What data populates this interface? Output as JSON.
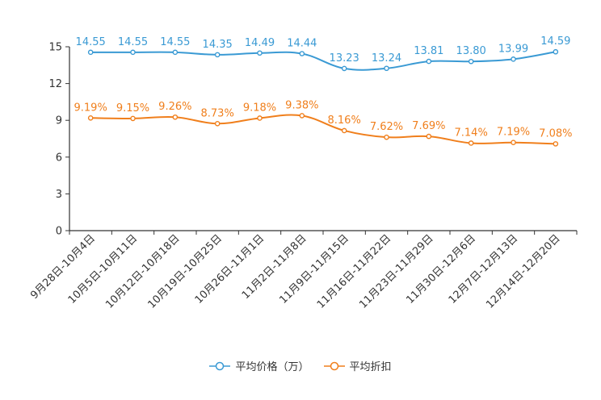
{
  "chart_data": {
    "type": "line",
    "title": "",
    "xlabel": "",
    "ylabel": "",
    "ylim": [
      0,
      15
    ],
    "yticks": [
      0,
      3,
      6,
      9,
      12,
      15
    ],
    "grid": false,
    "legend_position": "bottom",
    "categories": [
      "9月28日-10月4日",
      "10月5日-10月11日",
      "10月12日-10月18日",
      "10月19日-10月25日",
      "10月26日-11月1日",
      "11月2日-11月8日",
      "11月9日-11月15日",
      "11月16日-11月22日",
      "11月23日-11月29日",
      "11月30日-12月6日",
      "12月7日-12月13日",
      "12月14日-12月20日"
    ],
    "series": [
      {
        "name": "平均价格（万）",
        "color": "#3a9ad4",
        "values": [
          14.55,
          14.55,
          14.55,
          14.35,
          14.49,
          14.44,
          13.23,
          13.24,
          13.81,
          13.8,
          13.99,
          14.59
        ],
        "labels": [
          "14.55",
          "14.55",
          "14.55",
          "14.35",
          "14.49",
          "14.44",
          "13.23",
          "13.24",
          "13.81",
          "13.80",
          "13.99",
          "14.59"
        ]
      },
      {
        "name": "平均折扣",
        "color": "#f07f1c",
        "values": [
          9.19,
          9.15,
          9.26,
          8.73,
          9.18,
          9.38,
          8.16,
          7.62,
          7.69,
          7.14,
          7.19,
          7.08
        ],
        "labels": [
          "9.19%",
          "9.15%",
          "9.26%",
          "8.73%",
          "9.18%",
          "9.38%",
          "8.16%",
          "7.62%",
          "7.69%",
          "7.14%",
          "7.19%",
          "7.08%"
        ]
      }
    ]
  }
}
